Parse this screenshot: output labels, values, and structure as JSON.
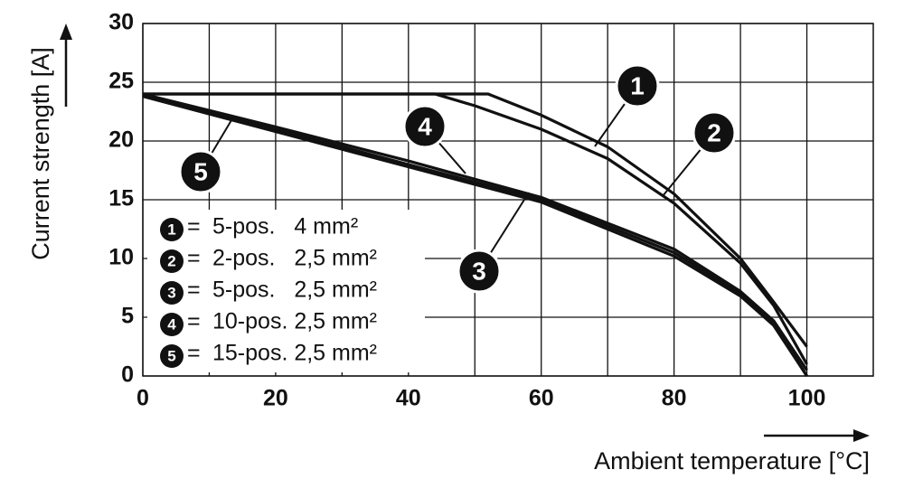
{
  "chart_data": {
    "type": "line",
    "x_label": "Ambient temperature [°C]",
    "y_label": "Current strength [A]",
    "xlim": [
      0,
      110
    ],
    "xticks": [
      0,
      20,
      40,
      60,
      80,
      100
    ],
    "x_minor_grid": [
      10,
      30,
      50,
      70,
      90
    ],
    "ylim": [
      0,
      30
    ],
    "yticks": [
      0,
      5,
      10,
      15,
      20,
      25,
      30
    ],
    "grid": true,
    "legend_separator": "=",
    "legend": "lower left",
    "series": [
      {
        "name": "5-pos.   4 mm²",
        "marker": "1",
        "color": "#111111",
        "x": [
          0,
          52,
          60,
          70,
          80,
          90,
          95,
          100
        ],
        "values": [
          24,
          24,
          22.2,
          19.5,
          15.5,
          10,
          6.3,
          2.5
        ]
      },
      {
        "name": "2-pos.   2,5 mm²",
        "marker": "2",
        "color": "#111111",
        "x": [
          0,
          44,
          50,
          60,
          70,
          80,
          90,
          95,
          100
        ],
        "values": [
          24,
          24,
          23,
          21,
          18.5,
          14.7,
          9.6,
          6,
          1
        ]
      },
      {
        "name": "5-pos.   2,5 mm²",
        "marker": "3",
        "color": "#111111",
        "x": [
          0,
          20,
          40,
          60,
          80,
          90,
          95,
          100
        ],
        "values": [
          24,
          21,
          18,
          15,
          10.5,
          7,
          4.5,
          0
        ]
      },
      {
        "name": "10-pos. 2,5 mm²",
        "marker": "4",
        "color": "#111111",
        "x": [
          0,
          20,
          40,
          60,
          80,
          90,
          95,
          100
        ],
        "values": [
          24,
          21.2,
          18.3,
          15.2,
          10.8,
          7.2,
          4.7,
          0.5
        ]
      },
      {
        "name": "15-pos. 2,5 mm²",
        "marker": "5",
        "color": "#111111",
        "x": [
          0,
          20,
          40,
          60,
          80,
          90,
          95,
          100
        ],
        "values": [
          23.8,
          20.8,
          17.8,
          14.8,
          10.2,
          6.8,
          4.3,
          0
        ]
      }
    ]
  }
}
